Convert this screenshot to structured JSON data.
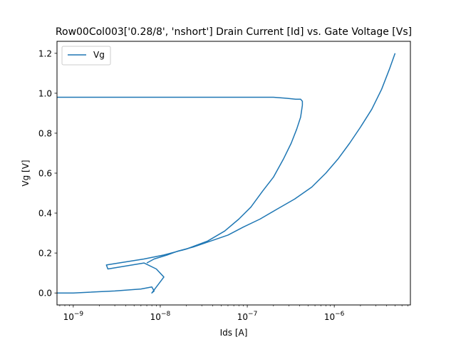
{
  "chart_data": {
    "type": "line",
    "title": "Row00Col003['0.28/8', 'nshort'] Drain Current [Id] vs. Gate Voltage [Vs]",
    "xlabel": "Ids [A]",
    "ylabel": "Vg [V]",
    "xscale": "log",
    "xlim": [
      6.5e-10,
      7.5e-06
    ],
    "ylim": [
      -0.06,
      1.26
    ],
    "yticks": [
      0.0,
      0.2,
      0.4,
      0.6,
      0.8,
      1.0,
      1.2
    ],
    "ytick_labels": [
      "0.0",
      "0.2",
      "0.4",
      "0.6",
      "0.8",
      "1.0",
      "1.2"
    ],
    "xticks": [
      1e-09,
      1e-08,
      1e-07,
      1e-06
    ],
    "xtick_labels": [
      {
        "base": "10",
        "exp": "−9"
      },
      {
        "base": "10",
        "exp": "−8"
      },
      {
        "base": "10",
        "exp": "−7"
      },
      {
        "base": "10",
        "exp": "−6"
      }
    ],
    "grid": false,
    "legend": {
      "position": "top-left"
    },
    "series": [
      {
        "name": "Vg",
        "color": "#1f77b4",
        "x": [
          6.5e-10,
          1e-09,
          3e-09,
          6e-09,
          8e-09,
          8.5e-09,
          8e-09,
          1.1e-08,
          9e-09,
          6.5e-09,
          2.5e-09,
          2.4e-09,
          6.5e-09,
          1.1e-08,
          2e-08,
          3.5e-08,
          5.5e-08,
          8e-08,
          1.1e-07,
          1.5e-07,
          2e-07,
          2.6e-07,
          3.2e-07,
          3.7e-07,
          4.1e-07,
          4.3e-07,
          4.3e-07,
          4.1e-07,
          3.6e-07,
          2.8e-07,
          2e-07,
          1.3e-07,
          6.5e-08,
          6.5e-10
        ],
        "y": [
          0.0,
          0.0,
          0.01,
          0.02,
          0.03,
          0.01,
          0.0,
          0.08,
          0.12,
          0.15,
          0.12,
          0.14,
          0.17,
          0.19,
          0.22,
          0.26,
          0.31,
          0.37,
          0.43,
          0.51,
          0.58,
          0.67,
          0.75,
          0.82,
          0.88,
          0.94,
          0.96,
          0.97,
          0.97,
          0.975,
          0.98,
          0.98,
          0.98,
          0.98
        ]
      },
      {
        "name": "",
        "color": "#1f77b4",
        "x": [
          7e-09,
          8.5e-09,
          1.2e-08,
          1.6e-08,
          2.4e-08,
          3.8e-08,
          6e-08,
          9e-08,
          1.4e-07,
          2.2e-07,
          3.5e-07,
          5.5e-07,
          8e-07,
          1.1e-06,
          1.5e-06,
          2e-06,
          2.7e-06,
          3.5e-06,
          4.3e-06,
          5e-06
        ],
        "y": [
          0.15,
          0.17,
          0.19,
          0.21,
          0.23,
          0.26,
          0.29,
          0.33,
          0.37,
          0.42,
          0.47,
          0.53,
          0.6,
          0.67,
          0.75,
          0.83,
          0.92,
          1.02,
          1.12,
          1.2
        ]
      }
    ]
  }
}
